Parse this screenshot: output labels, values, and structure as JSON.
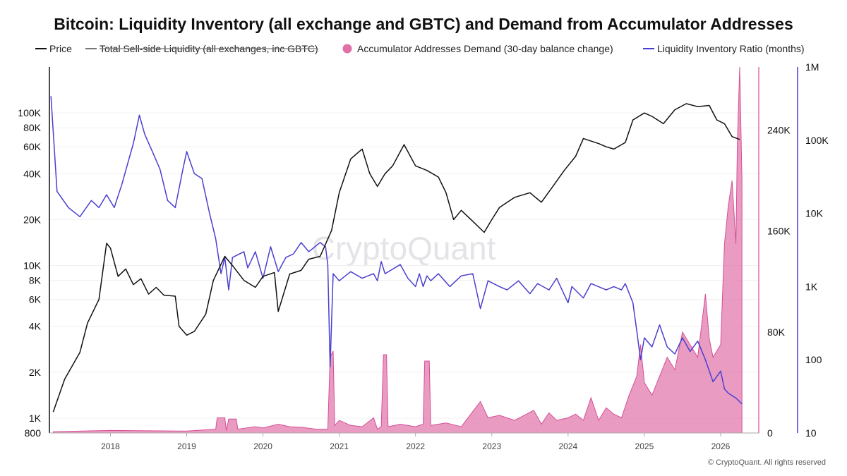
{
  "chart_data": {
    "type": "line",
    "title": "Bitcoin: Liquidity Inventory (all exchange and GBTC) and Demand from Accumulator Addresses",
    "legend": {
      "placement": "top",
      "entries": [
        {
          "name": "Price",
          "color": "#111111",
          "marker": "line",
          "struck_through": false
        },
        {
          "name": "Total Sell-side Liquidity (all exchanges, inc GBTC)",
          "color": "#777777",
          "marker": "line",
          "struck_through": true
        },
        {
          "name": "Accumulator Addresses Demand (30-day balance change)",
          "color": "#e070a8",
          "marker": "circle",
          "struck_through": false
        },
        {
          "name": "Liquidity Inventory Ratio (months)",
          "color": "#4a3fd0",
          "marker": "line",
          "struck_through": false
        }
      ]
    },
    "x_axis": {
      "range": [
        2017.2,
        2026.5
      ],
      "tick_labels": [
        "2018",
        "2019",
        "2020",
        "2021",
        "2022",
        "2023",
        "2024",
        "2025",
        "2026"
      ],
      "tick_values": [
        2018,
        2019,
        2020,
        2021,
        2022,
        2023,
        2024,
        2025,
        2026
      ]
    },
    "y_axis_left": {
      "scale": "log",
      "range": [
        800,
        200000
      ],
      "tick_labels": [
        "800",
        "1K",
        "2K",
        "4K",
        "6K",
        "8K",
        "10K",
        "20K",
        "40K",
        "60K",
        "80K",
        "100K"
      ],
      "tick_values": [
        800,
        1000,
        2000,
        4000,
        6000,
        8000,
        10000,
        20000,
        40000,
        60000,
        80000,
        100000
      ]
    },
    "y_axis_right_demand": {
      "scale": "linear",
      "range": [
        0,
        290000
      ],
      "color": "#e070a8",
      "tick_labels": [
        "0",
        "80K",
        "160K",
        "240K"
      ],
      "tick_values": [
        0,
        80000,
        160000,
        240000
      ]
    },
    "y_axis_right_ratio": {
      "scale": "log",
      "range": [
        10,
        1000000
      ],
      "color": "#4a3fd0",
      "tick_labels": [
        "10",
        "100",
        "1K",
        "10K",
        "100K",
        "1M"
      ],
      "tick_values": [
        10,
        100,
        1000,
        10000,
        100000,
        1000000
      ]
    },
    "grid": {
      "horizontal": true,
      "vertical": false
    },
    "watermark": "CryptoQuant",
    "copyright": "© CryptoQuant. All rights reserved",
    "series": [
      {
        "name": "Price",
        "axis": "left",
        "color": "#111111",
        "render": "line",
        "points": [
          [
            2017.25,
            1100
          ],
          [
            2017.4,
            1800
          ],
          [
            2017.6,
            2700
          ],
          [
            2017.7,
            4200
          ],
          [
            2017.85,
            6000
          ],
          [
            2017.95,
            14000
          ],
          [
            2018.0,
            13000
          ],
          [
            2018.1,
            8500
          ],
          [
            2018.2,
            9500
          ],
          [
            2018.3,
            7500
          ],
          [
            2018.4,
            8200
          ],
          [
            2018.5,
            6500
          ],
          [
            2018.6,
            7200
          ],
          [
            2018.7,
            6400
          ],
          [
            2018.85,
            6300
          ],
          [
            2018.9,
            4000
          ],
          [
            2019.0,
            3500
          ],
          [
            2019.1,
            3700
          ],
          [
            2019.25,
            4800
          ],
          [
            2019.35,
            8000
          ],
          [
            2019.5,
            11500
          ],
          [
            2019.6,
            10000
          ],
          [
            2019.75,
            8000
          ],
          [
            2019.9,
            7200
          ],
          [
            2020.0,
            8500
          ],
          [
            2020.15,
            9000
          ],
          [
            2020.2,
            5000
          ],
          [
            2020.35,
            8800
          ],
          [
            2020.5,
            9300
          ],
          [
            2020.6,
            11000
          ],
          [
            2020.75,
            11500
          ],
          [
            2020.9,
            17000
          ],
          [
            2021.0,
            30000
          ],
          [
            2021.15,
            50000
          ],
          [
            2021.3,
            58000
          ],
          [
            2021.4,
            40000
          ],
          [
            2021.5,
            33000
          ],
          [
            2021.6,
            40000
          ],
          [
            2021.7,
            45000
          ],
          [
            2021.85,
            62000
          ],
          [
            2022.0,
            45000
          ],
          [
            2022.15,
            42000
          ],
          [
            2022.3,
            38000
          ],
          [
            2022.4,
            30000
          ],
          [
            2022.5,
            20000
          ],
          [
            2022.6,
            23000
          ],
          [
            2022.75,
            19500
          ],
          [
            2022.9,
            16500
          ],
          [
            2023.0,
            20000
          ],
          [
            2023.1,
            24000
          ],
          [
            2023.3,
            28000
          ],
          [
            2023.5,
            30000
          ],
          [
            2023.65,
            26000
          ],
          [
            2023.8,
            33000
          ],
          [
            2023.95,
            42000
          ],
          [
            2024.1,
            52000
          ],
          [
            2024.2,
            68000
          ],
          [
            2024.4,
            63000
          ],
          [
            2024.5,
            60000
          ],
          [
            2024.6,
            58000
          ],
          [
            2024.75,
            64000
          ],
          [
            2024.85,
            90000
          ],
          [
            2025.0,
            100000
          ],
          [
            2025.1,
            95000
          ],
          [
            2025.25,
            85000
          ],
          [
            2025.4,
            105000
          ],
          [
            2025.55,
            115000
          ],
          [
            2025.7,
            110000
          ],
          [
            2025.85,
            112000
          ],
          [
            2025.95,
            90000
          ],
          [
            2026.05,
            85000
          ],
          [
            2026.15,
            70000
          ],
          [
            2026.25,
            67000
          ]
        ]
      },
      {
        "name": "Liquidity Inventory Ratio (months)",
        "axis": "right_ratio",
        "color": "#4a3fd0",
        "render": "line",
        "points": [
          [
            2017.22,
            400000
          ],
          [
            2017.3,
            20000
          ],
          [
            2017.45,
            12000
          ],
          [
            2017.6,
            9000
          ],
          [
            2017.75,
            15000
          ],
          [
            2017.85,
            12000
          ],
          [
            2017.95,
            18000
          ],
          [
            2018.05,
            12000
          ],
          [
            2018.15,
            25000
          ],
          [
            2018.3,
            90000
          ],
          [
            2018.38,
            220000
          ],
          [
            2018.45,
            120000
          ],
          [
            2018.55,
            70000
          ],
          [
            2018.65,
            40000
          ],
          [
            2018.75,
            15000
          ],
          [
            2018.85,
            12000
          ],
          [
            2018.95,
            40000
          ],
          [
            2019.0,
            70000
          ],
          [
            2019.1,
            35000
          ],
          [
            2019.2,
            30000
          ],
          [
            2019.3,
            10000
          ],
          [
            2019.38,
            4500
          ],
          [
            2019.45,
            1500
          ],
          [
            2019.5,
            2500
          ],
          [
            2019.55,
            900
          ],
          [
            2019.6,
            2500
          ],
          [
            2019.75,
            3000
          ],
          [
            2019.8,
            1800
          ],
          [
            2019.9,
            3000
          ],
          [
            2020.0,
            1300
          ],
          [
            2020.1,
            3500
          ],
          [
            2020.2,
            1600
          ],
          [
            2020.3,
            2500
          ],
          [
            2020.4,
            2800
          ],
          [
            2020.5,
            4000
          ],
          [
            2020.6,
            3000
          ],
          [
            2020.75,
            4000
          ],
          [
            2020.82,
            3500
          ],
          [
            2020.85,
            2000
          ],
          [
            2020.88,
            80
          ],
          [
            2020.92,
            1500
          ],
          [
            2021.0,
            1200
          ],
          [
            2021.15,
            1600
          ],
          [
            2021.3,
            1300
          ],
          [
            2021.45,
            1500
          ],
          [
            2021.5,
            1200
          ],
          [
            2021.55,
            2200
          ],
          [
            2021.6,
            1500
          ],
          [
            2021.8,
            2000
          ],
          [
            2021.9,
            1300
          ],
          [
            2022.0,
            1000
          ],
          [
            2022.05,
            1500
          ],
          [
            2022.1,
            1000
          ],
          [
            2022.15,
            1400
          ],
          [
            2022.2,
            1200
          ],
          [
            2022.3,
            1500
          ],
          [
            2022.45,
            1000
          ],
          [
            2022.6,
            1400
          ],
          [
            2022.75,
            1500
          ],
          [
            2022.85,
            500
          ],
          [
            2022.95,
            1200
          ],
          [
            2023.1,
            1000
          ],
          [
            2023.2,
            900
          ],
          [
            2023.35,
            1200
          ],
          [
            2023.5,
            800
          ],
          [
            2023.6,
            1100
          ],
          [
            2023.75,
            900
          ],
          [
            2023.85,
            1300
          ],
          [
            2024.0,
            600
          ],
          [
            2024.05,
            1000
          ],
          [
            2024.2,
            700
          ],
          [
            2024.3,
            1100
          ],
          [
            2024.5,
            900
          ],
          [
            2024.6,
            1000
          ],
          [
            2024.7,
            900
          ],
          [
            2024.75,
            1100
          ],
          [
            2024.85,
            600
          ],
          [
            2024.9,
            250
          ],
          [
            2024.95,
            100
          ],
          [
            2025.0,
            200
          ],
          [
            2025.1,
            150
          ],
          [
            2025.2,
            300
          ],
          [
            2025.3,
            150
          ],
          [
            2025.4,
            120
          ],
          [
            2025.5,
            200
          ],
          [
            2025.6,
            130
          ],
          [
            2025.7,
            180
          ],
          [
            2025.8,
            100
          ],
          [
            2025.9,
            50
          ],
          [
            2026.0,
            70
          ],
          [
            2026.05,
            40
          ],
          [
            2026.1,
            35
          ],
          [
            2026.2,
            30
          ],
          [
            2026.28,
            25
          ]
        ]
      },
      {
        "name": "Accumulator Addresses Demand (30-day balance change)",
        "axis": "right_demand",
        "color": "#e070a8",
        "render": "area",
        "points": [
          [
            2017.25,
            1000
          ],
          [
            2018.0,
            2000
          ],
          [
            2019.0,
            1500
          ],
          [
            2019.38,
            3000
          ],
          [
            2019.4,
            12000
          ],
          [
            2019.5,
            12000
          ],
          [
            2019.52,
            2000
          ],
          [
            2019.55,
            11000
          ],
          [
            2019.65,
            11000
          ],
          [
            2019.67,
            3000
          ],
          [
            2019.9,
            5000
          ],
          [
            2020.0,
            4000
          ],
          [
            2020.2,
            7000
          ],
          [
            2020.35,
            5000
          ],
          [
            2020.5,
            4500
          ],
          [
            2020.7,
            3000
          ],
          [
            2020.85,
            3000
          ],
          [
            2020.88,
            60000
          ],
          [
            2020.92,
            65000
          ],
          [
            2020.94,
            6000
          ],
          [
            2021.0,
            10000
          ],
          [
            2021.15,
            6000
          ],
          [
            2021.3,
            5000
          ],
          [
            2021.45,
            12000
          ],
          [
            2021.5,
            3000
          ],
          [
            2021.55,
            5000
          ],
          [
            2021.58,
            62000
          ],
          [
            2021.62,
            62000
          ],
          [
            2021.64,
            5000
          ],
          [
            2021.8,
            7000
          ],
          [
            2022.0,
            5000
          ],
          [
            2022.1,
            7000
          ],
          [
            2022.12,
            57000
          ],
          [
            2022.18,
            57000
          ],
          [
            2022.2,
            6000
          ],
          [
            2022.4,
            8000
          ],
          [
            2022.6,
            5000
          ],
          [
            2022.85,
            25000
          ],
          [
            2022.95,
            12000
          ],
          [
            2023.1,
            14000
          ],
          [
            2023.3,
            10000
          ],
          [
            2023.55,
            18000
          ],
          [
            2023.65,
            7000
          ],
          [
            2023.75,
            16000
          ],
          [
            2023.85,
            10000
          ],
          [
            2024.0,
            12000
          ],
          [
            2024.1,
            15000
          ],
          [
            2024.2,
            10000
          ],
          [
            2024.3,
            28000
          ],
          [
            2024.4,
            10000
          ],
          [
            2024.5,
            20000
          ],
          [
            2024.6,
            15000
          ],
          [
            2024.7,
            12000
          ],
          [
            2024.8,
            30000
          ],
          [
            2024.9,
            45000
          ],
          [
            2024.95,
            70000
          ],
          [
            2025.0,
            40000
          ],
          [
            2025.1,
            30000
          ],
          [
            2025.2,
            45000
          ],
          [
            2025.3,
            60000
          ],
          [
            2025.4,
            50000
          ],
          [
            2025.5,
            80000
          ],
          [
            2025.6,
            70000
          ],
          [
            2025.7,
            60000
          ],
          [
            2025.8,
            110000
          ],
          [
            2025.85,
            75000
          ],
          [
            2025.9,
            60000
          ],
          [
            2026.0,
            70000
          ],
          [
            2026.05,
            150000
          ],
          [
            2026.1,
            180000
          ],
          [
            2026.15,
            200000
          ],
          [
            2026.2,
            150000
          ],
          [
            2026.22,
            230000
          ],
          [
            2026.25,
            290000
          ],
          [
            2026.28,
            200000
          ]
        ]
      }
    ]
  }
}
